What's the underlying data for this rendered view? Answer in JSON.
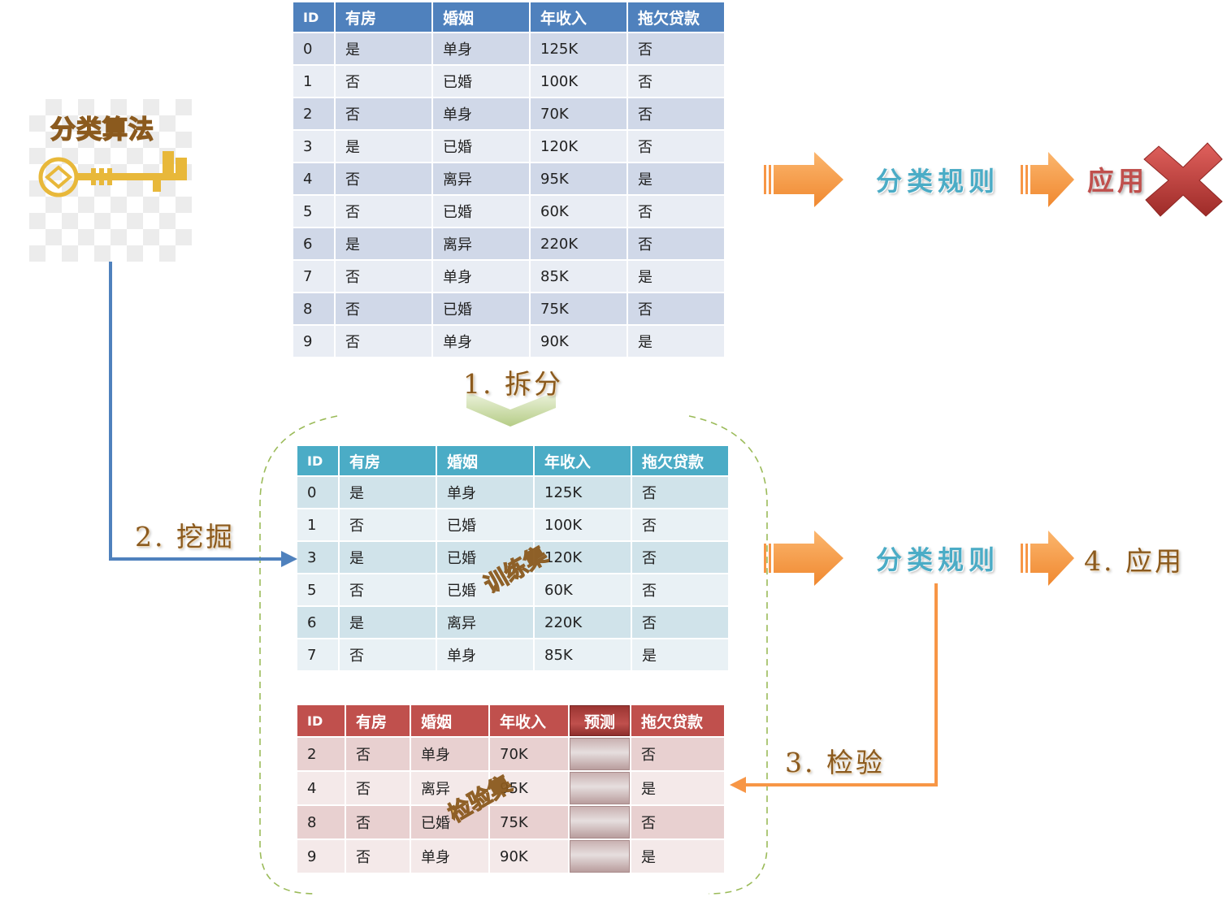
{
  "algorithm": {
    "label": "分类算法",
    "icon": "key-icon"
  },
  "full_table": {
    "headers": [
      "ID",
      "有房",
      "婚姻",
      "年收入",
      "拖欠贷款"
    ],
    "rows": [
      [
        "0",
        "是",
        "单身",
        "125K",
        "否"
      ],
      [
        "1",
        "否",
        "已婚",
        "100K",
        "否"
      ],
      [
        "2",
        "否",
        "单身",
        "70K",
        "否"
      ],
      [
        "3",
        "是",
        "已婚",
        "120K",
        "否"
      ],
      [
        "4",
        "否",
        "离异",
        "95K",
        "是"
      ],
      [
        "5",
        "否",
        "已婚",
        "60K",
        "否"
      ],
      [
        "6",
        "是",
        "离异",
        "220K",
        "否"
      ],
      [
        "7",
        "否",
        "单身",
        "85K",
        "是"
      ],
      [
        "8",
        "否",
        "已婚",
        "75K",
        "否"
      ],
      [
        "9",
        "否",
        "单身",
        "90K",
        "是"
      ]
    ]
  },
  "train_table": {
    "headers": [
      "ID",
      "有房",
      "婚姻",
      "年收入",
      "拖欠贷款"
    ],
    "watermark": "训练集",
    "rows": [
      [
        "0",
        "是",
        "单身",
        "125K",
        "否"
      ],
      [
        "1",
        "否",
        "已婚",
        "100K",
        "否"
      ],
      [
        "3",
        "是",
        "已婚",
        "120K",
        "否"
      ],
      [
        "5",
        "否",
        "已婚",
        "60K",
        "否"
      ],
      [
        "6",
        "是",
        "离异",
        "220K",
        "否"
      ],
      [
        "7",
        "否",
        "单身",
        "85K",
        "是"
      ]
    ]
  },
  "test_table": {
    "headers": [
      "ID",
      "有房",
      "婚姻",
      "年收入",
      "预测",
      "拖欠贷款"
    ],
    "watermark": "检验集",
    "rows": [
      [
        "2",
        "否",
        "单身",
        "70K",
        "",
        "否"
      ],
      [
        "4",
        "否",
        "离异",
        "95K",
        "",
        "是"
      ],
      [
        "8",
        "否",
        "已婚",
        "75K",
        "",
        "否"
      ],
      [
        "9",
        "否",
        "单身",
        "90K",
        "",
        "是"
      ]
    ]
  },
  "steps": {
    "split": "1. 拆分",
    "mine": "2. 挖掘",
    "verify": "3. 检验",
    "apply": "4. 应用"
  },
  "top_flow": {
    "rule": "分类规则",
    "apply": "应用",
    "reject_icon": "x-mark-icon"
  },
  "bottom_flow": {
    "rule": "分类规则"
  },
  "colors": {
    "full_header": "#4f81bd",
    "train_header": "#4bacc6",
    "test_header": "#c0504d",
    "flow_arrow": "#f79646",
    "mine_arrow": "#4f81bd",
    "split_chevron": "#c3d69b",
    "dashed_border": "#9bbb59"
  }
}
